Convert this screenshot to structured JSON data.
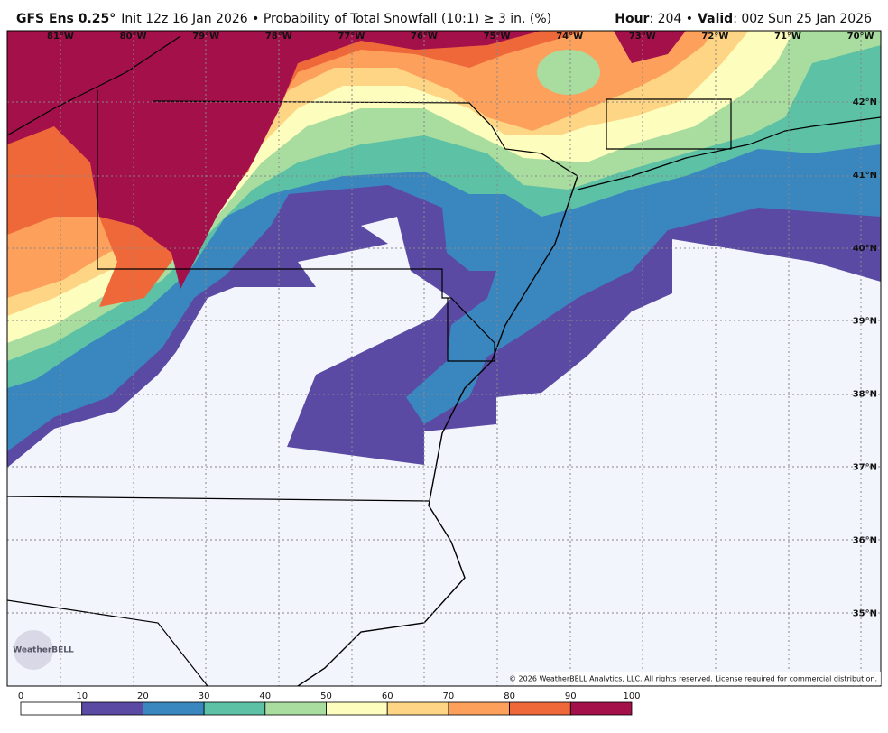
{
  "header": {
    "model": "GFS Ens 0.25°",
    "product": "Init 12z 16 Jan 2026 • Probability of Total Snowfall (10:1) ≥ 3 in. (%)",
    "hour_label": "Hour",
    "hour": ": 204 •",
    "valid_label": "Valid",
    "valid": ": 00z Sun 25 Jan 2026"
  },
  "map": {
    "lon_labels": [
      "81°W",
      "80°W",
      "79°W",
      "78°W",
      "77°W",
      "76°W",
      "75°W",
      "74°W",
      "73°W",
      "72°W",
      "71°W",
      "70°W"
    ],
    "lat_labels": [
      "42°N",
      "41°N",
      "40°N",
      "39°N",
      "38°N",
      "37°N",
      "36°N",
      "35°N"
    ],
    "watermark": "WeatherBELL",
    "copyright": "© 2026 WeatherBELL Analytics, LLC. All rights reserved. License required for commercial distribution."
  },
  "colorbar": {
    "ticks": [
      0,
      10,
      20,
      30,
      40,
      50,
      60,
      70,
      80,
      90,
      100
    ],
    "colors": [
      "#ffffff",
      "#5b4aa3",
      "#3a87c0",
      "#5dc1a5",
      "#a8dd9f",
      "#fdfdbd",
      "#fed584",
      "#fca05c",
      "#ee6839",
      "#a3104a"
    ]
  }
}
